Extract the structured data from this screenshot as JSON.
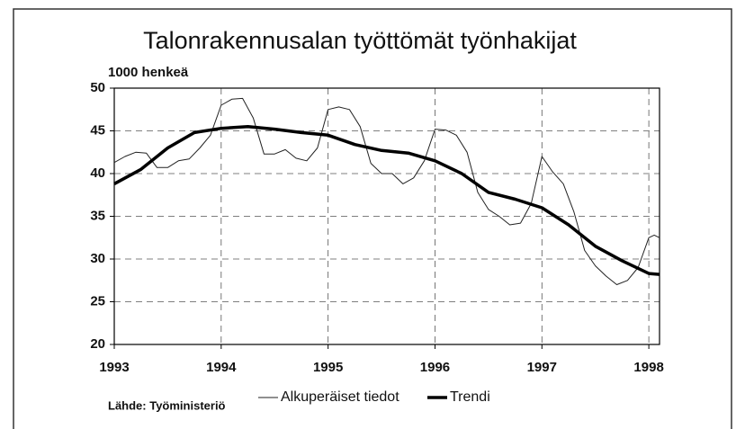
{
  "chart_data": {
    "type": "line",
    "title": "Talonrakennusalan työttömät työnhakijat",
    "y_label": "1000 henkeä",
    "source": "Lähde: Työministeriö",
    "xlim": [
      1993,
      1998.1
    ],
    "xticks": [
      1993,
      1994,
      1995,
      1996,
      1997,
      1998
    ],
    "ylim": [
      20,
      50
    ],
    "yticks": [
      20,
      25,
      30,
      35,
      40,
      45,
      50
    ],
    "grid": true,
    "series": [
      {
        "name": "Alkuperäiset tiedot",
        "color": "#222222",
        "x": [
          1993.0,
          1993.1,
          1993.2,
          1993.3,
          1993.4,
          1993.5,
          1993.6,
          1993.7,
          1993.8,
          1993.9,
          1994.0,
          1994.1,
          1994.2,
          1994.3,
          1994.4,
          1994.5,
          1994.6,
          1994.7,
          1994.8,
          1994.9,
          1995.0,
          1995.1,
          1995.2,
          1995.3,
          1995.4,
          1995.5,
          1995.6,
          1995.7,
          1995.8,
          1995.9,
          1996.0,
          1996.1,
          1996.2,
          1996.3,
          1996.4,
          1996.5,
          1996.6,
          1996.7,
          1996.8,
          1996.9,
          1997.0,
          1997.1,
          1997.2,
          1997.3,
          1997.4,
          1997.5,
          1997.6,
          1997.7,
          1997.8,
          1997.9,
          1998.0,
          1998.05,
          1998.1
        ],
        "values": [
          41.3,
          42,
          42.5,
          42.4,
          40.7,
          40.7,
          41.5,
          41.7,
          43,
          44.5,
          48,
          48.7,
          48.8,
          46.5,
          42.3,
          42.3,
          42.8,
          41.8,
          41.5,
          43,
          47.5,
          47.8,
          47.5,
          45.5,
          41.2,
          40,
          40,
          38.8,
          39.5,
          41.5,
          45.2,
          45.1,
          44.5,
          42.5,
          37.8,
          35.8,
          35,
          34,
          34.2,
          36.5,
          42,
          40.2,
          38.8,
          35.5,
          31,
          29.2,
          28,
          27,
          27.5,
          29,
          32.5,
          32.8,
          32.5
        ]
      },
      {
        "name": "Trendi",
        "color": "#000000",
        "x": [
          1993.0,
          1993.25,
          1993.5,
          1993.75,
          1994.0,
          1994.25,
          1994.5,
          1994.75,
          1995.0,
          1995.25,
          1995.5,
          1995.75,
          1996.0,
          1996.25,
          1996.5,
          1996.75,
          1997.0,
          1997.25,
          1997.5,
          1997.75,
          1998.0,
          1998.1
        ],
        "values": [
          38.8,
          40.5,
          43,
          44.8,
          45.3,
          45.5,
          45.2,
          44.8,
          44.5,
          43.4,
          42.7,
          42.4,
          41.5,
          40,
          37.8,
          37,
          36,
          34,
          31.5,
          29.8,
          28.3,
          28.2
        ]
      }
    ]
  }
}
